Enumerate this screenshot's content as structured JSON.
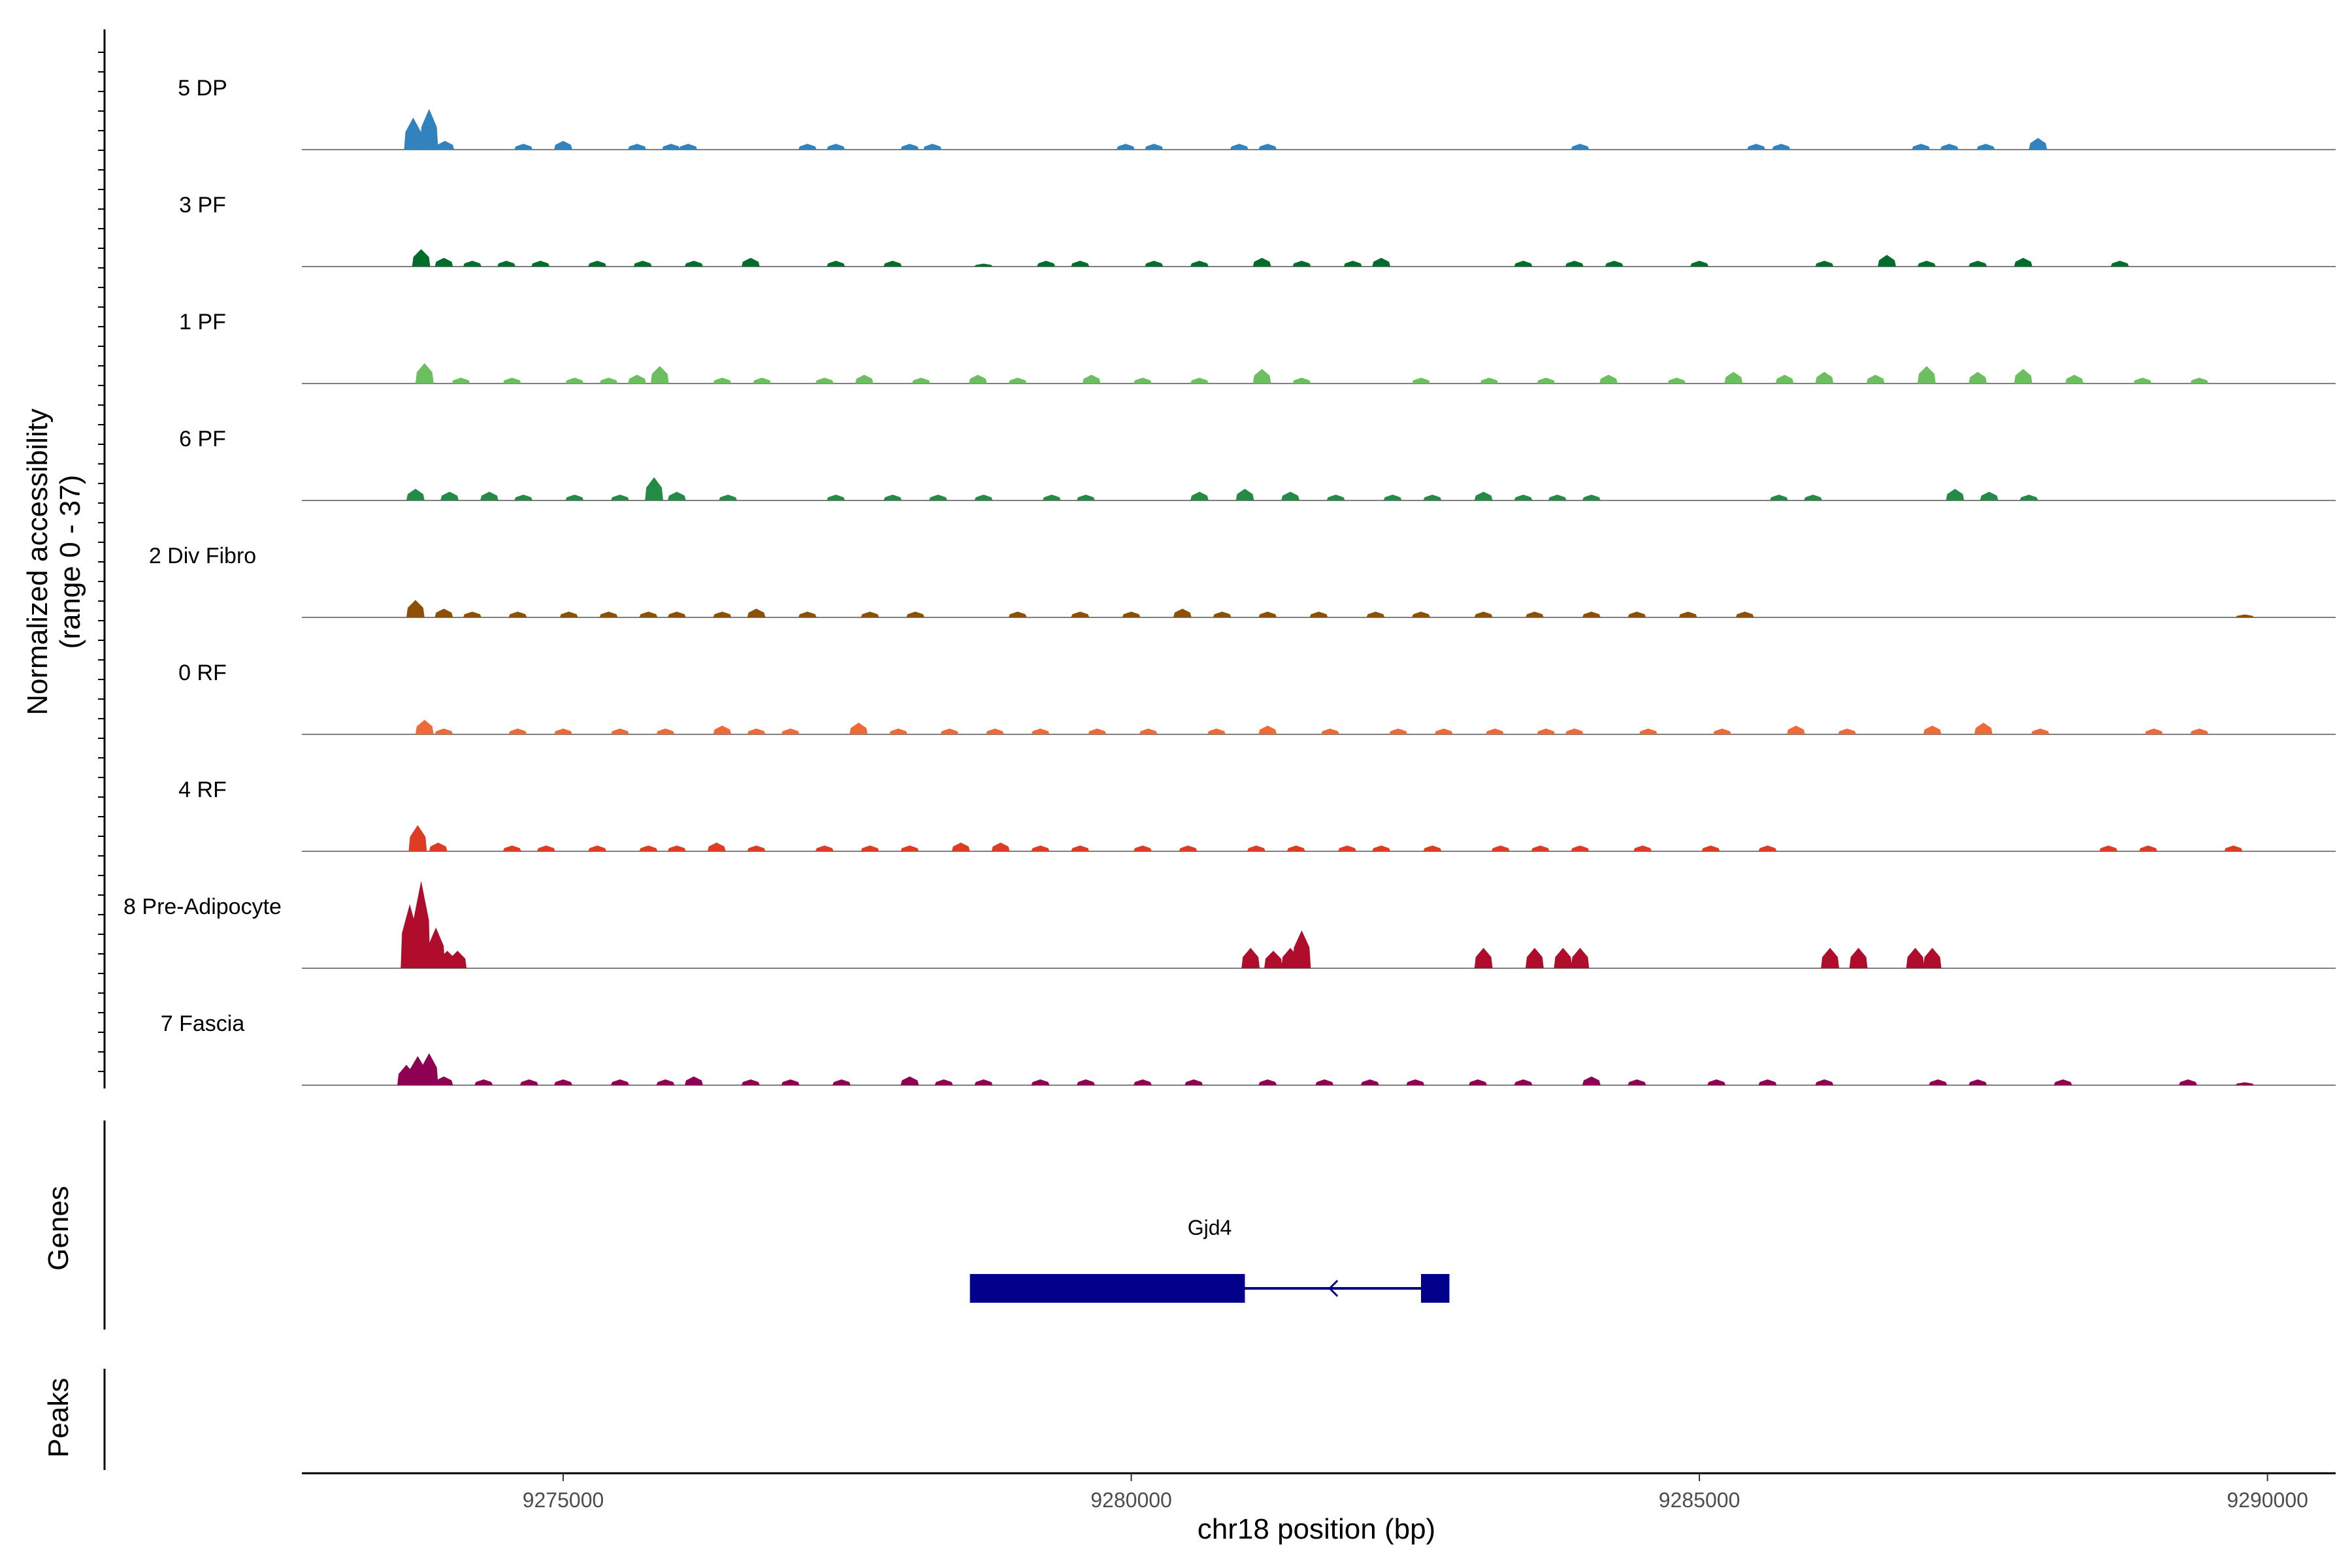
{
  "chart_data": {
    "type": "area",
    "xlabel": "chr18 position (bp)",
    "ylabel_line1": "Normalized accessibility",
    "ylabel_line2": "(range 0 - 37)",
    "y_range": [
      0,
      37
    ],
    "xlim": [
      9272700,
      9290600
    ],
    "x_ticks": [
      9275000,
      9280000,
      9285000,
      9290000
    ],
    "x_tick_labels": [
      "9275000",
      "9280000",
      "9285000",
      "9290000"
    ],
    "genes_label": "Genes",
    "peaks_label": "Peaks",
    "gene": {
      "name": "Gjd4",
      "strand": "-",
      "start": 9278580,
      "end": 9282800,
      "exons": [
        [
          9278580,
          9281000
        ],
        [
          9282550,
          9282800
        ]
      ],
      "color": "#00008b"
    },
    "tracks": [
      {
        "name": "5 DP",
        "color": "#3182bd",
        "peaks": [
          [
            9273680,
            11
          ],
          [
            9273820,
            14
          ],
          [
            9273960,
            3
          ],
          [
            9274650,
            2
          ],
          [
            9275000,
            3
          ],
          [
            9275650,
            2
          ],
          [
            9275950,
            2
          ],
          [
            9276100,
            2
          ],
          [
            9277150,
            2
          ],
          [
            9277400,
            2
          ],
          [
            9278050,
            2
          ],
          [
            9278250,
            2
          ],
          [
            9279950,
            2
          ],
          [
            9280200,
            2
          ],
          [
            9280950,
            2
          ],
          [
            9281200,
            2
          ],
          [
            9283950,
            2
          ],
          [
            9285500,
            2
          ],
          [
            9285720,
            2
          ],
          [
            9286950,
            2
          ],
          [
            9287200,
            2
          ],
          [
            9287520,
            2
          ],
          [
            9287980,
            4
          ]
        ]
      },
      {
        "name": "3 PF",
        "color": "#006d2c",
        "peaks": [
          [
            9273750,
            6
          ],
          [
            9273950,
            3
          ],
          [
            9274200,
            2
          ],
          [
            9274500,
            2
          ],
          [
            9274800,
            2
          ],
          [
            9275300,
            2
          ],
          [
            9275700,
            2
          ],
          [
            9276150,
            2
          ],
          [
            9276650,
            3
          ],
          [
            9277400,
            2
          ],
          [
            9277900,
            2
          ],
          [
            9278700,
            1
          ],
          [
            9279250,
            2
          ],
          [
            9279550,
            2
          ],
          [
            9280200,
            2
          ],
          [
            9280600,
            2
          ],
          [
            9281150,
            3
          ],
          [
            9281500,
            2
          ],
          [
            9281950,
            2
          ],
          [
            9282200,
            3
          ],
          [
            9283450,
            2
          ],
          [
            9283900,
            2
          ],
          [
            9284250,
            2
          ],
          [
            9285000,
            2
          ],
          [
            9286100,
            2
          ],
          [
            9286650,
            4
          ],
          [
            9287000,
            2
          ],
          [
            9287450,
            2
          ],
          [
            9287850,
            3
          ],
          [
            9288700,
            2
          ]
        ]
      },
      {
        "name": "1 PF",
        "color": "#6bbf5f",
        "peaks": [
          [
            9273780,
            7
          ],
          [
            9274100,
            2
          ],
          [
            9274550,
            2
          ],
          [
            9275100,
            2
          ],
          [
            9275400,
            2
          ],
          [
            9275650,
            3
          ],
          [
            9275850,
            6
          ],
          [
            9276400,
            2
          ],
          [
            9276750,
            2
          ],
          [
            9277300,
            2
          ],
          [
            9277650,
            3
          ],
          [
            9278150,
            2
          ],
          [
            9278650,
            3
          ],
          [
            9279000,
            2
          ],
          [
            9279650,
            3
          ],
          [
            9280100,
            2
          ],
          [
            9280600,
            2
          ],
          [
            9281150,
            5
          ],
          [
            9281500,
            2
          ],
          [
            9282550,
            2
          ],
          [
            9283150,
            2
          ],
          [
            9283650,
            2
          ],
          [
            9284200,
            3
          ],
          [
            9284800,
            2
          ],
          [
            9285300,
            4
          ],
          [
            9285750,
            3
          ],
          [
            9286100,
            4
          ],
          [
            9286550,
            3
          ],
          [
            9287000,
            6
          ],
          [
            9287450,
            4
          ],
          [
            9287850,
            5
          ],
          [
            9288300,
            3
          ],
          [
            9288900,
            2
          ],
          [
            9289400,
            2
          ]
        ]
      },
      {
        "name": "6 PF",
        "color": "#238b45",
        "peaks": [
          [
            9273700,
            4
          ],
          [
            9274000,
            3
          ],
          [
            9274350,
            3
          ],
          [
            9274650,
            2
          ],
          [
            9275100,
            2
          ],
          [
            9275500,
            2
          ],
          [
            9275800,
            8
          ],
          [
            9276000,
            3
          ],
          [
            9276450,
            2
          ],
          [
            9277400,
            2
          ],
          [
            9277900,
            2
          ],
          [
            9278300,
            2
          ],
          [
            9278700,
            2
          ],
          [
            9279300,
            2
          ],
          [
            9279600,
            2
          ],
          [
            9280600,
            3
          ],
          [
            9281000,
            4
          ],
          [
            9281400,
            3
          ],
          [
            9281800,
            2
          ],
          [
            9282300,
            2
          ],
          [
            9282650,
            2
          ],
          [
            9283100,
            3
          ],
          [
            9283450,
            2
          ],
          [
            9283750,
            2
          ],
          [
            9284050,
            2
          ],
          [
            9285700,
            2
          ],
          [
            9286000,
            2
          ],
          [
            9287250,
            4
          ],
          [
            9287550,
            3
          ],
          [
            9287900,
            2
          ]
        ]
      },
      {
        "name": "2 Div Fibro",
        "color": "#8b5109",
        "peaks": [
          [
            9273700,
            6
          ],
          [
            9273950,
            3
          ],
          [
            9274200,
            2
          ],
          [
            9274600,
            2
          ],
          [
            9275050,
            2
          ],
          [
            9275400,
            2
          ],
          [
            9275750,
            2
          ],
          [
            9276000,
            2
          ],
          [
            9276400,
            2
          ],
          [
            9276700,
            3
          ],
          [
            9277150,
            2
          ],
          [
            9277700,
            2
          ],
          [
            9278100,
            2
          ],
          [
            9279000,
            2
          ],
          [
            9279550,
            2
          ],
          [
            9280000,
            2
          ],
          [
            9280450,
            3
          ],
          [
            9280800,
            2
          ],
          [
            9281200,
            2
          ],
          [
            9281650,
            2
          ],
          [
            9282150,
            2
          ],
          [
            9282550,
            2
          ],
          [
            9283100,
            2
          ],
          [
            9283550,
            2
          ],
          [
            9284050,
            2
          ],
          [
            9284450,
            2
          ],
          [
            9284900,
            2
          ],
          [
            9285400,
            2
          ],
          [
            9289800,
            1
          ]
        ]
      },
      {
        "name": "0 RF",
        "color": "#ef6a39",
        "peaks": [
          [
            9273780,
            5
          ],
          [
            9273950,
            2
          ],
          [
            9274600,
            2
          ],
          [
            9275000,
            2
          ],
          [
            9275500,
            2
          ],
          [
            9275900,
            2
          ],
          [
            9276400,
            3
          ],
          [
            9276700,
            2
          ],
          [
            9277000,
            2
          ],
          [
            9277600,
            4
          ],
          [
            9277950,
            2
          ],
          [
            9278400,
            2
          ],
          [
            9278800,
            2
          ],
          [
            9279200,
            2
          ],
          [
            9279700,
            2
          ],
          [
            9280150,
            2
          ],
          [
            9280750,
            2
          ],
          [
            9281200,
            3
          ],
          [
            9281750,
            2
          ],
          [
            9282350,
            2
          ],
          [
            9282750,
            2
          ],
          [
            9283200,
            2
          ],
          [
            9283650,
            2
          ],
          [
            9283900,
            2
          ],
          [
            9284550,
            2
          ],
          [
            9285200,
            2
          ],
          [
            9285850,
            3
          ],
          [
            9286300,
            2
          ],
          [
            9287050,
            3
          ],
          [
            9287500,
            4
          ],
          [
            9288000,
            2
          ],
          [
            9289000,
            2
          ],
          [
            9289400,
            2
          ]
        ]
      },
      {
        "name": "4 RF",
        "color": "#de3d25",
        "peaks": [
          [
            9273720,
            9
          ],
          [
            9273900,
            3
          ],
          [
            9274550,
            2
          ],
          [
            9274850,
            2
          ],
          [
            9275300,
            2
          ],
          [
            9275750,
            2
          ],
          [
            9276000,
            2
          ],
          [
            9276350,
            3
          ],
          [
            9276700,
            2
          ],
          [
            9277300,
            2
          ],
          [
            9277700,
            2
          ],
          [
            9278050,
            2
          ],
          [
            9278500,
            3
          ],
          [
            9278850,
            3
          ],
          [
            9279200,
            2
          ],
          [
            9279550,
            2
          ],
          [
            9280100,
            2
          ],
          [
            9280500,
            2
          ],
          [
            9281100,
            2
          ],
          [
            9281450,
            2
          ],
          [
            9281900,
            2
          ],
          [
            9282200,
            2
          ],
          [
            9282650,
            2
          ],
          [
            9283250,
            2
          ],
          [
            9283600,
            2
          ],
          [
            9283950,
            2
          ],
          [
            9284500,
            2
          ],
          [
            9285100,
            2
          ],
          [
            9285600,
            2
          ],
          [
            9288600,
            2
          ],
          [
            9288950,
            2
          ],
          [
            9289700,
            2
          ]
        ]
      },
      {
        "name": "8 Pre-Adipocyte",
        "color": "#b00d2c",
        "peaks": [
          [
            9273650,
            22
          ],
          [
            9273750,
            30
          ],
          [
            9273880,
            14
          ],
          [
            9273980,
            6
          ],
          [
            9274070,
            6
          ],
          [
            9281050,
            7
          ],
          [
            9281250,
            6
          ],
          [
            9281400,
            7
          ],
          [
            9281500,
            13
          ],
          [
            9283100,
            7
          ],
          [
            9283550,
            7
          ],
          [
            9283800,
            7
          ],
          [
            9283950,
            7
          ],
          [
            9286150,
            7
          ],
          [
            9286400,
            7
          ],
          [
            9286900,
            7
          ],
          [
            9287050,
            7
          ]
        ]
      },
      {
        "name": "7 Fascia",
        "color": "#8e0152",
        "peaks": [
          [
            9273620,
            7
          ],
          [
            9273720,
            10
          ],
          [
            9273820,
            11
          ],
          [
            9273950,
            3
          ],
          [
            9274300,
            2
          ],
          [
            9274700,
            2
          ],
          [
            9275000,
            2
          ],
          [
            9275500,
            2
          ],
          [
            9275900,
            2
          ],
          [
            9276150,
            3
          ],
          [
            9276650,
            2
          ],
          [
            9277000,
            2
          ],
          [
            9277450,
            2
          ],
          [
            9278050,
            3
          ],
          [
            9278350,
            2
          ],
          [
            9278700,
            2
          ],
          [
            9279200,
            2
          ],
          [
            9279600,
            2
          ],
          [
            9280100,
            2
          ],
          [
            9280550,
            2
          ],
          [
            9281200,
            2
          ],
          [
            9281700,
            2
          ],
          [
            9282100,
            2
          ],
          [
            9282500,
            2
          ],
          [
            9283050,
            2
          ],
          [
            9283450,
            2
          ],
          [
            9284050,
            3
          ],
          [
            9284450,
            2
          ],
          [
            9285150,
            2
          ],
          [
            9285600,
            2
          ],
          [
            9286100,
            2
          ],
          [
            9287100,
            2
          ],
          [
            9287450,
            2
          ],
          [
            9288200,
            2
          ],
          [
            9289300,
            2
          ],
          [
            9289800,
            1
          ]
        ]
      }
    ]
  }
}
